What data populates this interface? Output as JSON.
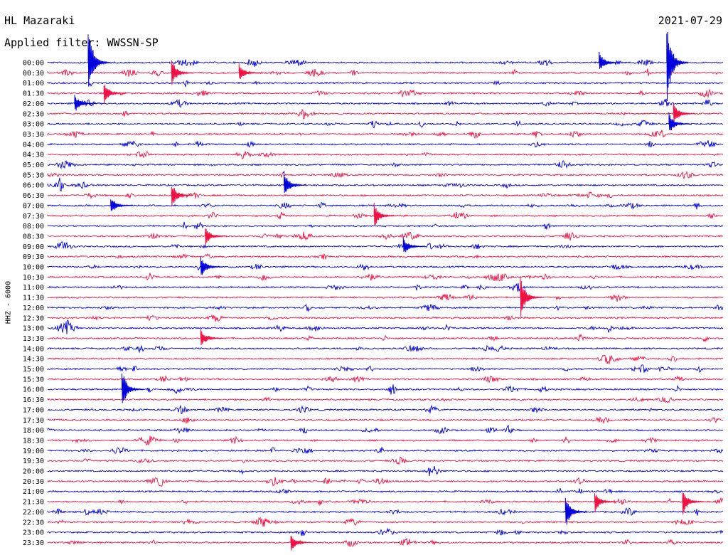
{
  "header": {
    "station": "HL Mazaraki",
    "filter": "Applied filter: WWSSN-SP",
    "date": "2021-07-29",
    "channel": "HHZ - 6000"
  },
  "colors": {
    "trace_a": "#0000dd",
    "trace_b": "#ee1144",
    "text": "#000000"
  },
  "chart_data": {
    "type": "line",
    "title": "HL Mazaraki",
    "subtitle": "Applied filter: WWSSN-SP",
    "date": "2021-07-29",
    "ylabel": "HHZ - 6000",
    "xlabel": "",
    "grid": false,
    "legend": "none",
    "row_labels": [
      "00:00",
      "00:30",
      "01:00",
      "01:30",
      "02:00",
      "02:30",
      "03:00",
      "03:30",
      "04:00",
      "04:30",
      "05:00",
      "05:30",
      "06:00",
      "06:30",
      "07:00",
      "07:30",
      "08:00",
      "08:30",
      "09:00",
      "09:30",
      "10:00",
      "10:30",
      "11:00",
      "11:30",
      "12:00",
      "12:30",
      "13:00",
      "13:30",
      "14:00",
      "14:30",
      "15:00",
      "15:30",
      "16:00",
      "16:30",
      "17:00",
      "17:30",
      "18:00",
      "18:30",
      "19:00",
      "19:30",
      "20:00",
      "20:30",
      "21:00",
      "21:30",
      "22:00",
      "22:30",
      "23:00",
      "23:30"
    ],
    "row_duration_minutes": 30,
    "series_colors": [
      "#0000dd",
      "#ee1144"
    ],
    "events": [
      {
        "row": "00:00",
        "minute": 1.8,
        "amplitude": 3.8
      },
      {
        "row": "00:00",
        "minute": 24.5,
        "amplitude": 1.2
      },
      {
        "row": "00:00",
        "minute": 27.5,
        "amplitude": 4.5
      },
      {
        "row": "00:30",
        "minute": 5.5,
        "amplitude": 1.5
      },
      {
        "row": "00:30",
        "minute": 8.5,
        "amplitude": 1.0
      },
      {
        "row": "01:30",
        "minute": 2.5,
        "amplitude": 1.2
      },
      {
        "row": "02:00",
        "minute": 1.2,
        "amplitude": 1.0
      },
      {
        "row": "02:30",
        "minute": 27.8,
        "amplitude": 1.3
      },
      {
        "row": "03:00",
        "minute": 27.6,
        "amplitude": 1.2
      },
      {
        "row": "06:00",
        "minute": 10.5,
        "amplitude": 1.5
      },
      {
        "row": "06:30",
        "minute": 5.5,
        "amplitude": 1.4
      },
      {
        "row": "07:00",
        "minute": 2.8,
        "amplitude": 1.0
      },
      {
        "row": "07:30",
        "minute": 14.5,
        "amplitude": 1.3
      },
      {
        "row": "08:30",
        "minute": 7.0,
        "amplitude": 1.0
      },
      {
        "row": "09:00",
        "minute": 15.8,
        "amplitude": 1.0
      },
      {
        "row": "10:00",
        "minute": 6.8,
        "amplitude": 1.2
      },
      {
        "row": "11:30",
        "minute": 21.0,
        "amplitude": 2.5
      },
      {
        "row": "13:30",
        "minute": 6.8,
        "amplitude": 1.0
      },
      {
        "row": "16:00",
        "minute": 3.3,
        "amplitude": 2.0
      },
      {
        "row": "21:30",
        "minute": 24.3,
        "amplitude": 1.2
      },
      {
        "row": "21:30",
        "minute": 28.2,
        "amplitude": 1.5
      },
      {
        "row": "22:00",
        "minute": 23.0,
        "amplitude": 1.8
      },
      {
        "row": "23:30",
        "minute": 10.8,
        "amplitude": 1.0
      }
    ]
  }
}
